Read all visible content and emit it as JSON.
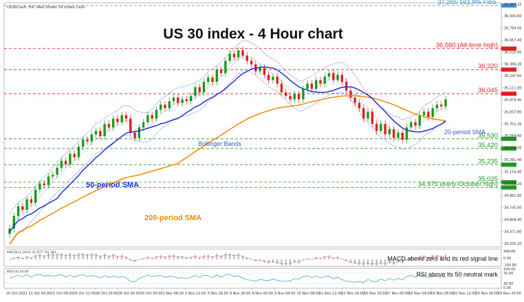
{
  "header": {
    "symbol_line": "US30Cash, H4: Wall Street 30 Index Cash"
  },
  "chart_data": {
    "type": "candlestick",
    "title": "US 30 index - 4 Hour chart",
    "x_ticks": [
      "20 Oct 2021",
      "21 Oct 04:00",
      "22 Oct 08:00",
      "25 Oct 12:00",
      "26 Oct 20:00",
      "28 Oct 00:00",
      "29 Oct 04:00",
      "1 Nov 08:00",
      "2 Nov 12:00",
      "3 Nov 16:00",
      "4 Nov 20:00",
      "8 Nov 00:00",
      "9 Nov 04:00",
      "10 Nov 08:00",
      "11 Nov 12:00",
      "12 Nov 16:00",
      "15 Nov 20:00",
      "17 Nov 00:00",
      "18 Nov 04:00",
      "19 Nov 08:00",
      "22 Nov 12:00",
      "23 Nov 16:00",
      "24 Nov 20:00"
    ],
    "y_ticks": [
      "37,067.22",
      "36,930.60",
      "36,794.00",
      "36,657.40",
      "36,520.80",
      "36,384.20",
      "36,247.60",
      "36,111.00",
      "35,974.40",
      "35,837.80",
      "35,701.20",
      "35,564.60",
      "35,428.00",
      "35,291.40",
      "35,154.80",
      "35,018.20",
      "34,881.60",
      "34,745.00",
      "34,608.40",
      "34,471.80",
      "34,335.20"
    ],
    "macd_ticks": [
      "349.66",
      "0.00",
      "-100.85"
    ],
    "rsi_ticks": [
      "100.00",
      "70.00",
      "30.00",
      "0.00"
    ],
    "levels": [
      {
        "value": 37265,
        "label": "37,265 161.8% Fibo.",
        "color": "#3a8fd8"
      },
      {
        "value": 36560,
        "label": "36,560 (All-time high)",
        "color": "#e02020"
      },
      {
        "value": 36320,
        "label": "36,320",
        "color": "#e02020"
      },
      {
        "value": 36045,
        "label": "36,045",
        "color": "#e02020"
      },
      {
        "value": 35530,
        "label": "35,530",
        "color": "#1a9a1a"
      },
      {
        "value": 35420,
        "label": "35,420",
        "color": "#1a9a1a"
      },
      {
        "value": 35235,
        "label": "35,235",
        "color": "#1a9a1a"
      },
      {
        "value": 35035,
        "label": "35,035",
        "color": "#1a9a1a"
      },
      {
        "value": 34975,
        "label": "34,975 (early-October high)",
        "color": "#1a9a1a"
      }
    ],
    "annotations": {
      "sma50": "50-period SMA",
      "sma200": "200-period SMA",
      "sma20": "20-period SMA",
      "bollinger": "Bollinger Bands"
    },
    "macd": {
      "header": "MACD(12,26,9) 31.077 -91.381",
      "note": "MACD above zero and its red signal line"
    },
    "rsi": {
      "header": "RSI(14) 54.00",
      "note": "RSI above its 50 neutral mark"
    },
    "colors": {
      "up": "#1a9a1a",
      "down": "#e02020",
      "sma50": "#1e2fd6",
      "sma200": "#f08a00",
      "bollinger": "#3a5ad6",
      "levels_red": "#e02020",
      "levels_green": "#1a9a1a",
      "fibo": "#3a8fd8"
    },
    "closes": [
      34505,
      34650,
      34760,
      34720,
      34840,
      34800,
      34950,
      35020,
      35000,
      35100,
      35120,
      35200,
      35280,
      35240,
      35360,
      35320,
      35440,
      35520,
      35500,
      35580,
      35620,
      35560,
      35700,
      35660,
      35760,
      35720,
      35800,
      35760,
      35600,
      35540,
      35660,
      35720,
      35800,
      35760,
      35860,
      35920,
      35880,
      35960,
      36000,
      35940,
      35980,
      35960,
      36020,
      36120,
      36060,
      36180,
      36230,
      36180,
      36320,
      36280,
      36420,
      36500,
      36460,
      36540,
      36480,
      36420,
      36380,
      36300,
      36340,
      36260,
      36200,
      36240,
      36160,
      36060,
      36020,
      35980,
      36040,
      35980,
      36100,
      36160,
      36100,
      36200,
      36160,
      36240,
      36280,
      36200,
      36260,
      36180,
      36080,
      36000,
      35940,
      35880,
      35760,
      35840,
      35700,
      35620,
      35700,
      35580,
      35640,
      35540,
      35600,
      35520,
      35660,
      35720,
      35680,
      35800,
      35840,
      35780,
      35880,
      35920,
      35900,
      35980
    ]
  }
}
